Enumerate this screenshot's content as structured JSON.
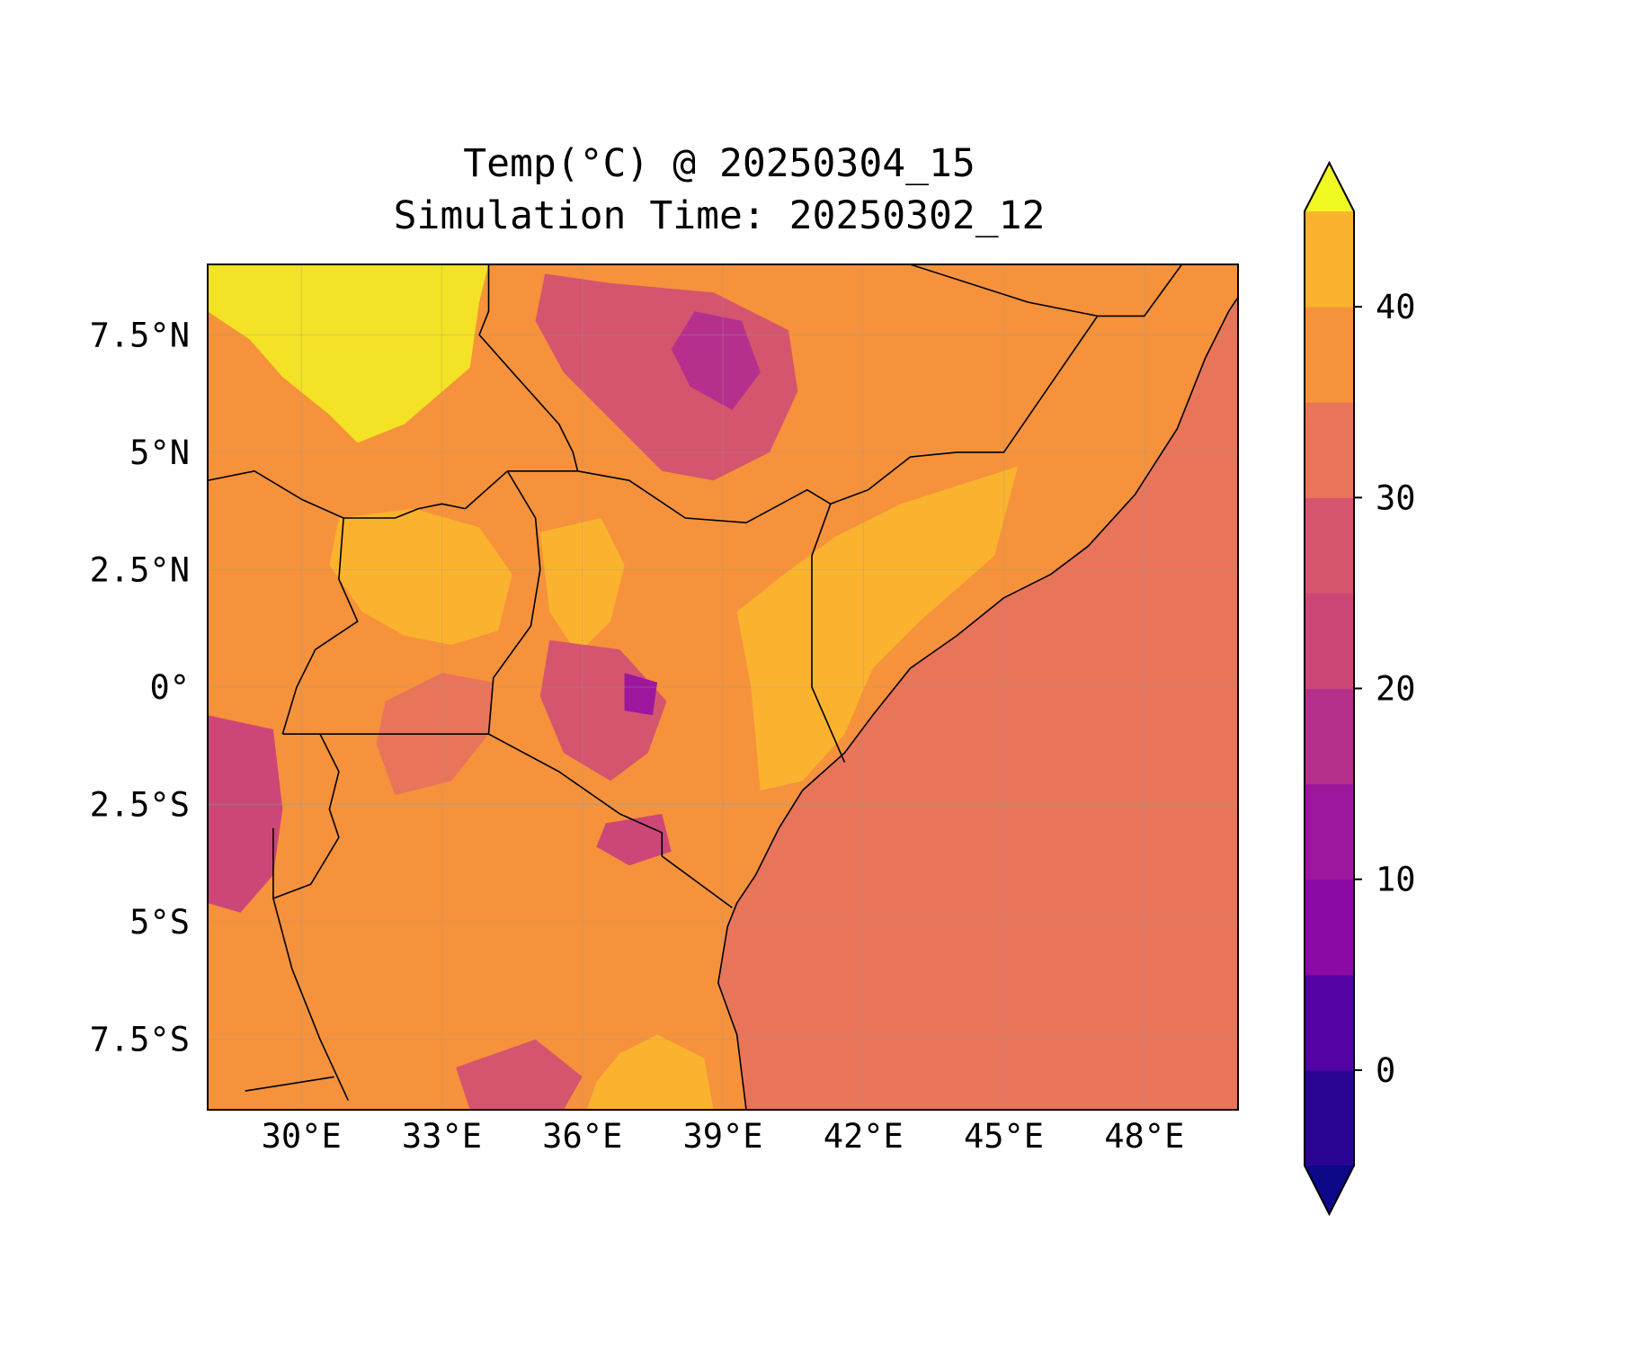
{
  "title": {
    "line1": "Temp(°C) @ 20250304_15",
    "line2": "Simulation Time: 20250302_12"
  },
  "map": {
    "lon_range": [
      28,
      50
    ],
    "lat_range": [
      -9,
      9
    ],
    "x_ticks": [
      {
        "lon": 30,
        "label": "30°E"
      },
      {
        "lon": 33,
        "label": "33°E"
      },
      {
        "lon": 36,
        "label": "36°E"
      },
      {
        "lon": 39,
        "label": "39°E"
      },
      {
        "lon": 42,
        "label": "42°E"
      },
      {
        "lon": 45,
        "label": "45°E"
      },
      {
        "lon": 48,
        "label": "48°E"
      }
    ],
    "y_ticks": [
      {
        "lat": 7.5,
        "label": "7.5°N"
      },
      {
        "lat": 5,
        "label": "5°N"
      },
      {
        "lat": 2.5,
        "label": "2.5°N"
      },
      {
        "lat": 0,
        "label": "0°"
      },
      {
        "lat": -2.5,
        "label": "2.5°S"
      },
      {
        "lat": -5,
        "label": "5°S"
      },
      {
        "lat": -7.5,
        "label": "7.5°S"
      }
    ],
    "gridlines": true,
    "colormap": "plasma",
    "regions": [
      {
        "name": "south-sudan-hot",
        "value": 43,
        "color": "#f3e225",
        "coords": [
          [
            28,
            9
          ],
          [
            34,
            9
          ],
          [
            33.8,
            8.2
          ],
          [
            33.6,
            6.8
          ],
          [
            32.2,
            5.6
          ],
          [
            31.2,
            5.2
          ],
          [
            30.6,
            5.8
          ],
          [
            29.6,
            6.6
          ],
          [
            28.9,
            7.4
          ],
          [
            28.3,
            7.8
          ],
          [
            28,
            8
          ]
        ]
      },
      {
        "name": "somali-interior",
        "value": 37,
        "color": "#fbb32f",
        "coords": [
          [
            41.4,
            3.2
          ],
          [
            42.8,
            3.9
          ],
          [
            45.3,
            4.7
          ],
          [
            44.8,
            2.8
          ],
          [
            43.2,
            1.4
          ],
          [
            42.2,
            0.4
          ],
          [
            41.6,
            -1.0
          ],
          [
            40.7,
            -2.0
          ],
          [
            39.8,
            -2.2
          ],
          [
            39.6,
            0.0
          ],
          [
            39.3,
            1.6
          ],
          [
            40.3,
            2.4
          ]
        ]
      },
      {
        "name": "uganda-plateau",
        "value": 37,
        "color": "#fbb32f",
        "coords": [
          [
            30.8,
            3.6
          ],
          [
            32.4,
            3.8
          ],
          [
            33.8,
            3.4
          ],
          [
            34.5,
            2.4
          ],
          [
            34.2,
            1.2
          ],
          [
            33.2,
            0.9
          ],
          [
            32.2,
            1.1
          ],
          [
            31.3,
            1.6
          ],
          [
            30.6,
            2.6
          ]
        ]
      },
      {
        "name": "turkana-lowland",
        "value": 37,
        "color": "#fbb32f",
        "coords": [
          [
            35.1,
            3.3
          ],
          [
            36.4,
            3.6
          ],
          [
            36.9,
            2.6
          ],
          [
            36.6,
            1.4
          ],
          [
            35.9,
            0.7
          ],
          [
            35.3,
            1.6
          ]
        ]
      },
      {
        "name": "tanzania-south-warm",
        "value": 37,
        "color": "#fbb32f",
        "coords": [
          [
            36.1,
            -9
          ],
          [
            38.8,
            -9
          ],
          [
            38.6,
            -7.9
          ],
          [
            37.6,
            -7.4
          ],
          [
            36.8,
            -7.8
          ],
          [
            36.3,
            -8.4
          ]
        ]
      },
      {
        "name": "ethiopian-highlands",
        "value": 22,
        "color": "#d5546e",
        "coords": [
          [
            35.2,
            8.8
          ],
          [
            36.6,
            8.6
          ],
          [
            38.8,
            8.4
          ],
          [
            40.4,
            7.6
          ],
          [
            40.6,
            6.3
          ],
          [
            40.0,
            5.0
          ],
          [
            38.8,
            4.4
          ],
          [
            37.7,
            4.6
          ],
          [
            36.7,
            5.6
          ],
          [
            35.6,
            6.7
          ],
          [
            35.0,
            7.8
          ]
        ]
      },
      {
        "name": "ethiopian-peaks",
        "value": 15,
        "color": "#b52f8c",
        "coords": [
          [
            38.4,
            8.0
          ],
          [
            39.4,
            7.8
          ],
          [
            39.8,
            6.7
          ],
          [
            39.2,
            5.9
          ],
          [
            38.3,
            6.4
          ],
          [
            37.9,
            7.2
          ]
        ]
      },
      {
        "name": "kenya-highlands",
        "value": 22,
        "color": "#d5546e",
        "coords": [
          [
            35.3,
            1.0
          ],
          [
            36.8,
            0.8
          ],
          [
            37.8,
            -0.3
          ],
          [
            37.4,
            -1.4
          ],
          [
            36.6,
            -2.0
          ],
          [
            35.6,
            -1.4
          ],
          [
            35.1,
            -0.2
          ]
        ]
      },
      {
        "name": "kenya-peaks",
        "value": 12,
        "color": "#9c179e",
        "coords": [
          [
            36.9,
            0.3
          ],
          [
            37.6,
            0.1
          ],
          [
            37.5,
            -0.6
          ],
          [
            36.9,
            -0.5
          ]
        ]
      },
      {
        "name": "rift-highlands-west",
        "value": 19,
        "color": "#cc4778",
        "coords": [
          [
            28,
            -0.6
          ],
          [
            29.4,
            -0.9
          ],
          [
            29.6,
            -2.6
          ],
          [
            29.4,
            -4.0
          ],
          [
            28.7,
            -4.8
          ],
          [
            28,
            -4.6
          ]
        ]
      },
      {
        "name": "kilimanjaro-area",
        "value": 18,
        "color": "#cc4778",
        "coords": [
          [
            36.5,
            -2.9
          ],
          [
            37.7,
            -2.7
          ],
          [
            37.9,
            -3.5
          ],
          [
            37.0,
            -3.8
          ],
          [
            36.3,
            -3.4
          ]
        ]
      },
      {
        "name": "southern-highlands",
        "value": 22,
        "color": "#d5546e",
        "coords": [
          [
            33.3,
            -8.1
          ],
          [
            35.0,
            -7.5
          ],
          [
            36.0,
            -8.3
          ],
          [
            35.6,
            -9
          ],
          [
            33.6,
            -9
          ]
        ]
      },
      {
        "name": "lake-victoria",
        "value": 28,
        "color": "#e8745a",
        "coords": [
          [
            31.8,
            -0.3
          ],
          [
            33.0,
            0.3
          ],
          [
            34.1,
            0.1
          ],
          [
            34.0,
            -1.0
          ],
          [
            33.2,
            -2.0
          ],
          [
            32.0,
            -2.3
          ],
          [
            31.6,
            -1.2
          ]
        ]
      }
    ],
    "boundaries": [
      {
        "name": "coastline",
        "coords": [
          [
            39.5,
            -9
          ],
          [
            39.4,
            -8.2
          ],
          [
            39.3,
            -7.4
          ],
          [
            38.9,
            -6.3
          ],
          [
            39.1,
            -5.1
          ],
          [
            39.3,
            -4.6
          ],
          [
            39.7,
            -4.0
          ],
          [
            40.2,
            -3.0
          ],
          [
            40.7,
            -2.2
          ],
          [
            41.6,
            -1.4
          ],
          [
            42.2,
            -0.6
          ],
          [
            43.0,
            0.4
          ],
          [
            44.0,
            1.1
          ],
          [
            45.0,
            1.9
          ],
          [
            46.0,
            2.4
          ],
          [
            46.8,
            3.0
          ],
          [
            47.8,
            4.1
          ],
          [
            48.7,
            5.5
          ],
          [
            49.3,
            7.0
          ],
          [
            49.8,
            8.0
          ],
          [
            50,
            8.3
          ]
        ]
      },
      {
        "name": "kenya-tanzania",
        "coords": [
          [
            34.0,
            -1.0
          ],
          [
            35.5,
            -1.8
          ],
          [
            36.8,
            -2.7
          ],
          [
            37.7,
            -3.1
          ],
          [
            37.7,
            -3.6
          ],
          [
            39.2,
            -4.7
          ]
        ]
      },
      {
        "name": "tanzania-uganda",
        "coords": [
          [
            30.4,
            -1.0
          ],
          [
            34.0,
            -1.0
          ]
        ]
      },
      {
        "name": "uganda-kenya",
        "coords": [
          [
            34.0,
            -1.0
          ],
          [
            34.1,
            0.2
          ],
          [
            34.9,
            1.3
          ],
          [
            35.1,
            2.5
          ],
          [
            35.0,
            3.6
          ],
          [
            34.4,
            4.6
          ]
        ]
      },
      {
        "name": "uganda-south-sudan",
        "coords": [
          [
            30.9,
            3.6
          ],
          [
            32.0,
            3.6
          ],
          [
            32.5,
            3.8
          ],
          [
            33.0,
            3.9
          ],
          [
            33.5,
            3.8
          ],
          [
            34.4,
            4.6
          ]
        ]
      },
      {
        "name": "kenya-ethiopia",
        "coords": [
          [
            35.9,
            4.6
          ],
          [
            37.0,
            4.4
          ],
          [
            38.2,
            3.6
          ],
          [
            39.5,
            3.5
          ],
          [
            40.8,
            4.2
          ],
          [
            41.3,
            3.9
          ]
        ]
      },
      {
        "name": "kenya-somalia",
        "coords": [
          [
            41.3,
            3.9
          ],
          [
            40.9,
            2.8
          ],
          [
            40.9,
            0.0
          ],
          [
            41.6,
            -1.6
          ]
        ]
      },
      {
        "name": "ethiopia-somalia",
        "coords": [
          [
            41.3,
            3.9
          ],
          [
            42.1,
            4.2
          ],
          [
            43.0,
            4.9
          ],
          [
            44.0,
            5.0
          ],
          [
            45.0,
            5.0
          ],
          [
            47.0,
            7.9
          ],
          [
            48.0,
            7.9
          ],
          [
            48.8,
            9.0
          ]
        ]
      },
      {
        "name": "ethiopia-somaliland-north",
        "coords": [
          [
            43.0,
            9.0
          ],
          [
            45.5,
            8.2
          ],
          [
            47.0,
            7.9
          ]
        ]
      },
      {
        "name": "south-sudan-ethiopia",
        "coords": [
          [
            34.0,
            9.0
          ],
          [
            34.0,
            8.0
          ],
          [
            33.8,
            7.5
          ],
          [
            34.6,
            6.6
          ],
          [
            35.5,
            5.6
          ],
          [
            35.8,
            5.0
          ],
          [
            35.9,
            4.6
          ],
          [
            34.4,
            4.6
          ]
        ]
      },
      {
        "name": "south-sudan-drc",
        "coords": [
          [
            28,
            4.4
          ],
          [
            29.0,
            4.6
          ],
          [
            30.0,
            4.0
          ],
          [
            30.9,
            3.6
          ]
        ]
      },
      {
        "name": "uganda-drc",
        "coords": [
          [
            30.9,
            3.6
          ],
          [
            30.8,
            2.3
          ],
          [
            31.2,
            1.4
          ],
          [
            30.3,
            0.8
          ],
          [
            29.9,
            0.0
          ],
          [
            29.6,
            -1.0
          ]
        ]
      },
      {
        "name": "lake-tanganyika-east",
        "coords": [
          [
            29.4,
            -3.0
          ],
          [
            29.4,
            -4.5
          ],
          [
            29.8,
            -6.0
          ],
          [
            30.4,
            -7.5
          ],
          [
            31.0,
            -8.8
          ]
        ]
      },
      {
        "name": "rwanda-burundi",
        "coords": [
          [
            29.6,
            -1.0
          ],
          [
            30.4,
            -1.0
          ],
          [
            30.8,
            -1.8
          ],
          [
            30.6,
            -2.6
          ],
          [
            30.8,
            -3.2
          ],
          [
            30.2,
            -4.2
          ],
          [
            29.4,
            -4.5
          ]
        ]
      },
      {
        "name": "zambia-tanzania",
        "coords": [
          [
            28.8,
            -8.6
          ],
          [
            30.7,
            -8.3
          ]
        ]
      }
    ]
  },
  "colorbar": {
    "levels": [
      -5,
      0,
      5,
      10,
      15,
      20,
      25,
      30,
      35,
      40,
      45
    ],
    "under_color": "#0d0887",
    "over_color": "#f0f921",
    "colors": [
      "#2a0593",
      "#5302a3",
      "#8b0aa5",
      "#9c179e",
      "#b52f8c",
      "#cc4778",
      "#d5546e",
      "#e8745a",
      "#f5923b",
      "#fbb32f",
      "#f3e225"
    ],
    "tick_values": [
      0,
      10,
      20,
      30,
      40
    ],
    "tick_labels": [
      "0",
      "10",
      "20",
      "30",
      "40"
    ]
  }
}
